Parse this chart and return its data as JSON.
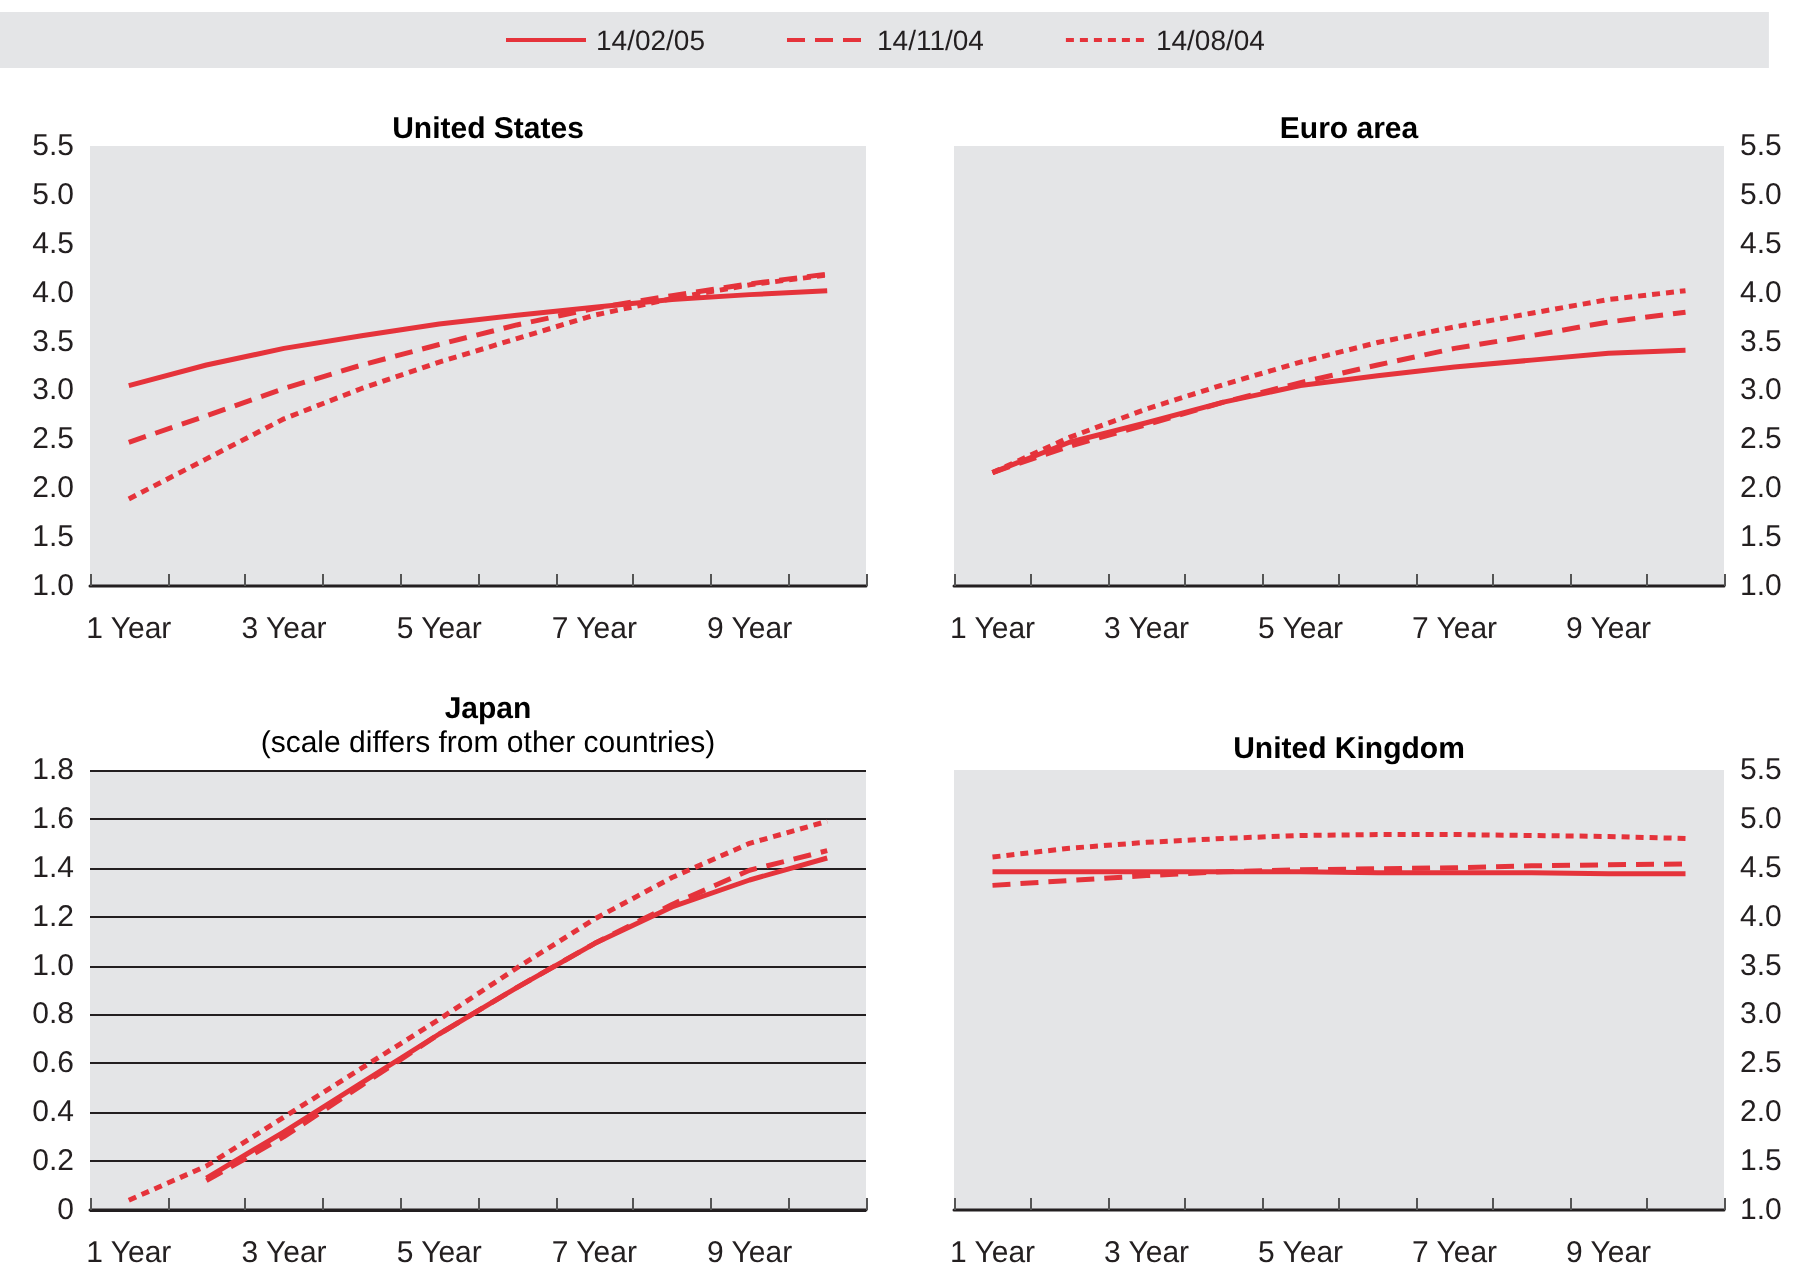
{
  "chart_data": [
    {
      "type": "line",
      "title": "United States",
      "legend": "top",
      "categories": [
        "1 Year",
        null,
        "3 Year",
        null,
        "5 Year",
        null,
        "7 Year",
        null,
        "9 Year",
        null
      ],
      "ylim": [
        1.0,
        5.5
      ],
      "yticks": [
        {
          "value": 1,
          "label": "1.0"
        },
        1.5,
        {
          "value": 2,
          "label": "2.0"
        },
        2.5,
        {
          "value": 3,
          "label": "3.0"
        },
        3.5,
        {
          "value": 4,
          "label": "4.0"
        },
        4.5,
        {
          "value": 5,
          "label": "5.0"
        },
        5.5
      ],
      "series": [
        {
          "name": "14/02/05",
          "color": "#e5333b",
          "line_style": "solid",
          "values": [
            3.05,
            3.26,
            3.43,
            3.56,
            3.68,
            3.77,
            3.85,
            3.93,
            3.98,
            4.02
          ]
        },
        {
          "name": "14/11/04",
          "color": "#e5333b",
          "line_style": "dashed",
          "values": [
            2.47,
            2.74,
            3.02,
            3.26,
            3.47,
            3.67,
            3.84,
            3.97,
            4.09,
            4.19
          ]
        },
        {
          "name": "14/08/04",
          "color": "#e5333b",
          "line_style": "dotted",
          "values": [
            1.89,
            2.3,
            2.71,
            3.02,
            3.29,
            3.53,
            3.77,
            3.94,
            4.08,
            4.18
          ]
        }
      ]
    },
    {
      "type": "line",
      "title": "Euro area",
      "categories": [
        "1 Year",
        null,
        "3 Year",
        null,
        "5 Year",
        null,
        "7 Year",
        null,
        "9 Year",
        null
      ],
      "ylim": [
        1.0,
        5.5
      ],
      "yticks": [
        {
          "value": 1,
          "label": "1.0"
        },
        1.5,
        {
          "value": 2,
          "label": "2.0"
        },
        2.5,
        {
          "value": 3,
          "label": "3.0"
        },
        3.5,
        {
          "value": 4,
          "label": "4.0"
        },
        4.5,
        {
          "value": 5,
          "label": "5.0"
        },
        5.5
      ],
      "series": [
        {
          "color": "#e5333b",
          "line_style": "solid",
          "values": [
            2.16,
            2.47,
            2.67,
            2.88,
            3.05,
            3.15,
            3.24,
            3.31,
            3.38,
            3.41
          ]
        },
        {
          "color": "#e5333b",
          "line_style": "dashed",
          "values": [
            2.16,
            2.43,
            2.65,
            2.88,
            3.08,
            3.26,
            3.43,
            3.56,
            3.7,
            3.8
          ]
        },
        {
          "color": "#e5333b",
          "line_style": "dotted",
          "values": [
            2.16,
            2.52,
            2.81,
            3.06,
            3.29,
            3.49,
            3.65,
            3.79,
            3.93,
            4.02
          ]
        }
      ]
    },
    {
      "type": "line",
      "title": "Japan",
      "subtitle": "(scale differs from other countries)",
      "grid": "y",
      "categories": [
        "1 Year",
        null,
        "3 Year",
        null,
        "5 Year",
        null,
        "7 Year",
        null,
        "9 Year",
        null
      ],
      "ylim": [
        0,
        1.8
      ],
      "yticks": [
        0,
        0.2,
        0.4,
        0.6,
        0.8,
        {
          "value": 1,
          "label": "1.0"
        },
        1.2,
        1.4,
        1.6,
        1.8
      ],
      "series": [
        {
          "color": "#e5333b",
          "line_style": "solid",
          "values": [
            null,
            0.13,
            0.32,
            0.52,
            0.72,
            0.91,
            1.09,
            1.24,
            1.35,
            1.44
          ]
        },
        {
          "color": "#e5333b",
          "line_style": "dashed",
          "values": [
            null,
            0.12,
            0.3,
            0.51,
            0.72,
            0.91,
            1.09,
            1.25,
            1.39,
            1.47
          ]
        },
        {
          "color": "#e5333b",
          "line_style": "dotted",
          "values": [
            0.04,
            0.18,
            0.38,
            0.58,
            0.78,
            0.99,
            1.19,
            1.36,
            1.5,
            1.59
          ]
        }
      ]
    },
    {
      "type": "line",
      "title": "United Kingdom",
      "categories": [
        "1 Year",
        null,
        "3 Year",
        null,
        "5 Year",
        null,
        "7 Year",
        null,
        "9 Year",
        null
      ],
      "ylim": [
        1.0,
        5.5
      ],
      "yticks": [
        {
          "value": 1,
          "label": "1.0"
        },
        1.5,
        {
          "value": 2,
          "label": "2.0"
        },
        2.5,
        {
          "value": 3,
          "label": "3.0"
        },
        3.5,
        {
          "value": 4,
          "label": "4.0"
        },
        4.5,
        {
          "value": 5,
          "label": "5.0"
        },
        5.5
      ],
      "series": [
        {
          "color": "#e5333b",
          "line_style": "solid",
          "values": [
            4.46,
            4.46,
            4.46,
            4.46,
            4.46,
            4.45,
            4.45,
            4.45,
            4.44,
            4.44
          ]
        },
        {
          "color": "#e5333b",
          "line_style": "dashed",
          "values": [
            4.32,
            4.37,
            4.42,
            4.46,
            4.48,
            4.49,
            4.5,
            4.52,
            4.53,
            4.54
          ]
        },
        {
          "color": "#e5333b",
          "line_style": "dotted",
          "values": [
            4.61,
            4.7,
            4.76,
            4.8,
            4.83,
            4.84,
            4.84,
            4.83,
            4.82,
            4.8
          ]
        }
      ]
    }
  ]
}
